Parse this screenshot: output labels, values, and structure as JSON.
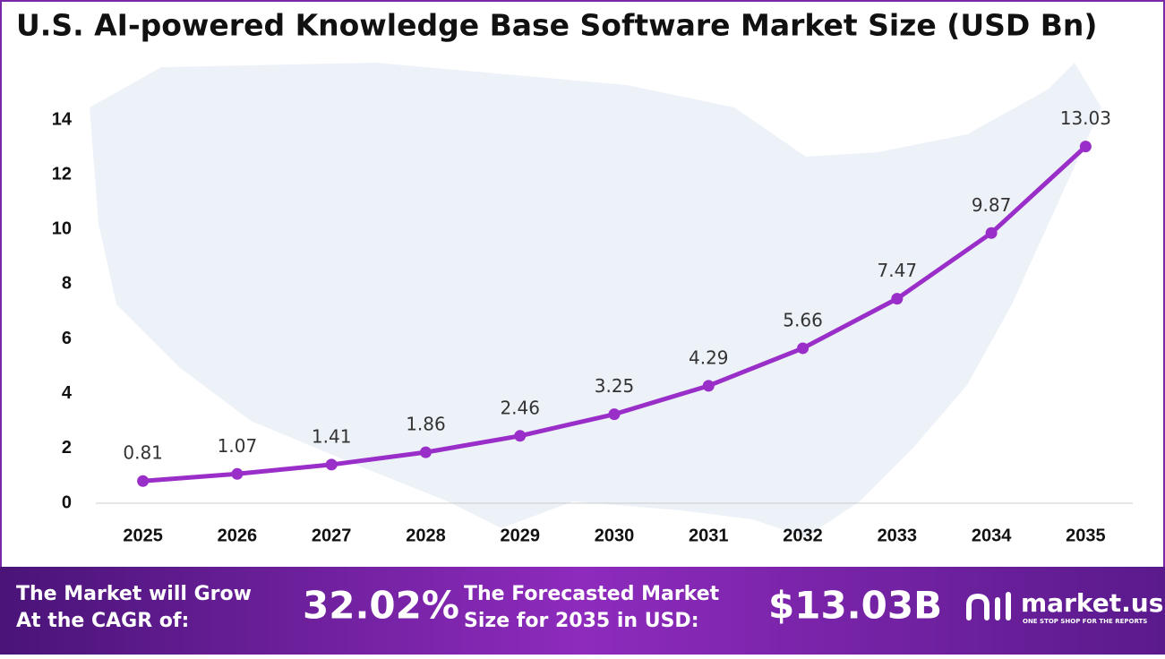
{
  "chart_data": {
    "type": "line",
    "title": "U.S. AI-powered Knowledge Base Software Market Size (USD Bn)",
    "categories": [
      "2025",
      "2026",
      "2027",
      "2028",
      "2029",
      "2030",
      "2031",
      "2032",
      "2033",
      "2034",
      "2035"
    ],
    "values": [
      0.81,
      1.07,
      1.41,
      1.86,
      2.46,
      3.25,
      4.29,
      5.66,
      7.47,
      9.87,
      13.03
    ],
    "color": "#9a2ec8",
    "ylim": [
      0,
      14
    ],
    "yticks": [
      0,
      2,
      4,
      6,
      8,
      10,
      12,
      14
    ],
    "grid": false
  },
  "footer": {
    "cagr_text_1": "The Market will Grow",
    "cagr_text_2": "At the CAGR of:",
    "cagr_value": "32.02%",
    "forecast_text_1": "The Forecasted Market",
    "forecast_text_2": "Size for 2035 in USD:",
    "forecast_value": "$13.03B",
    "brand": "market.us",
    "tagline": "ONE STOP SHOP FOR THE REPORTS"
  }
}
